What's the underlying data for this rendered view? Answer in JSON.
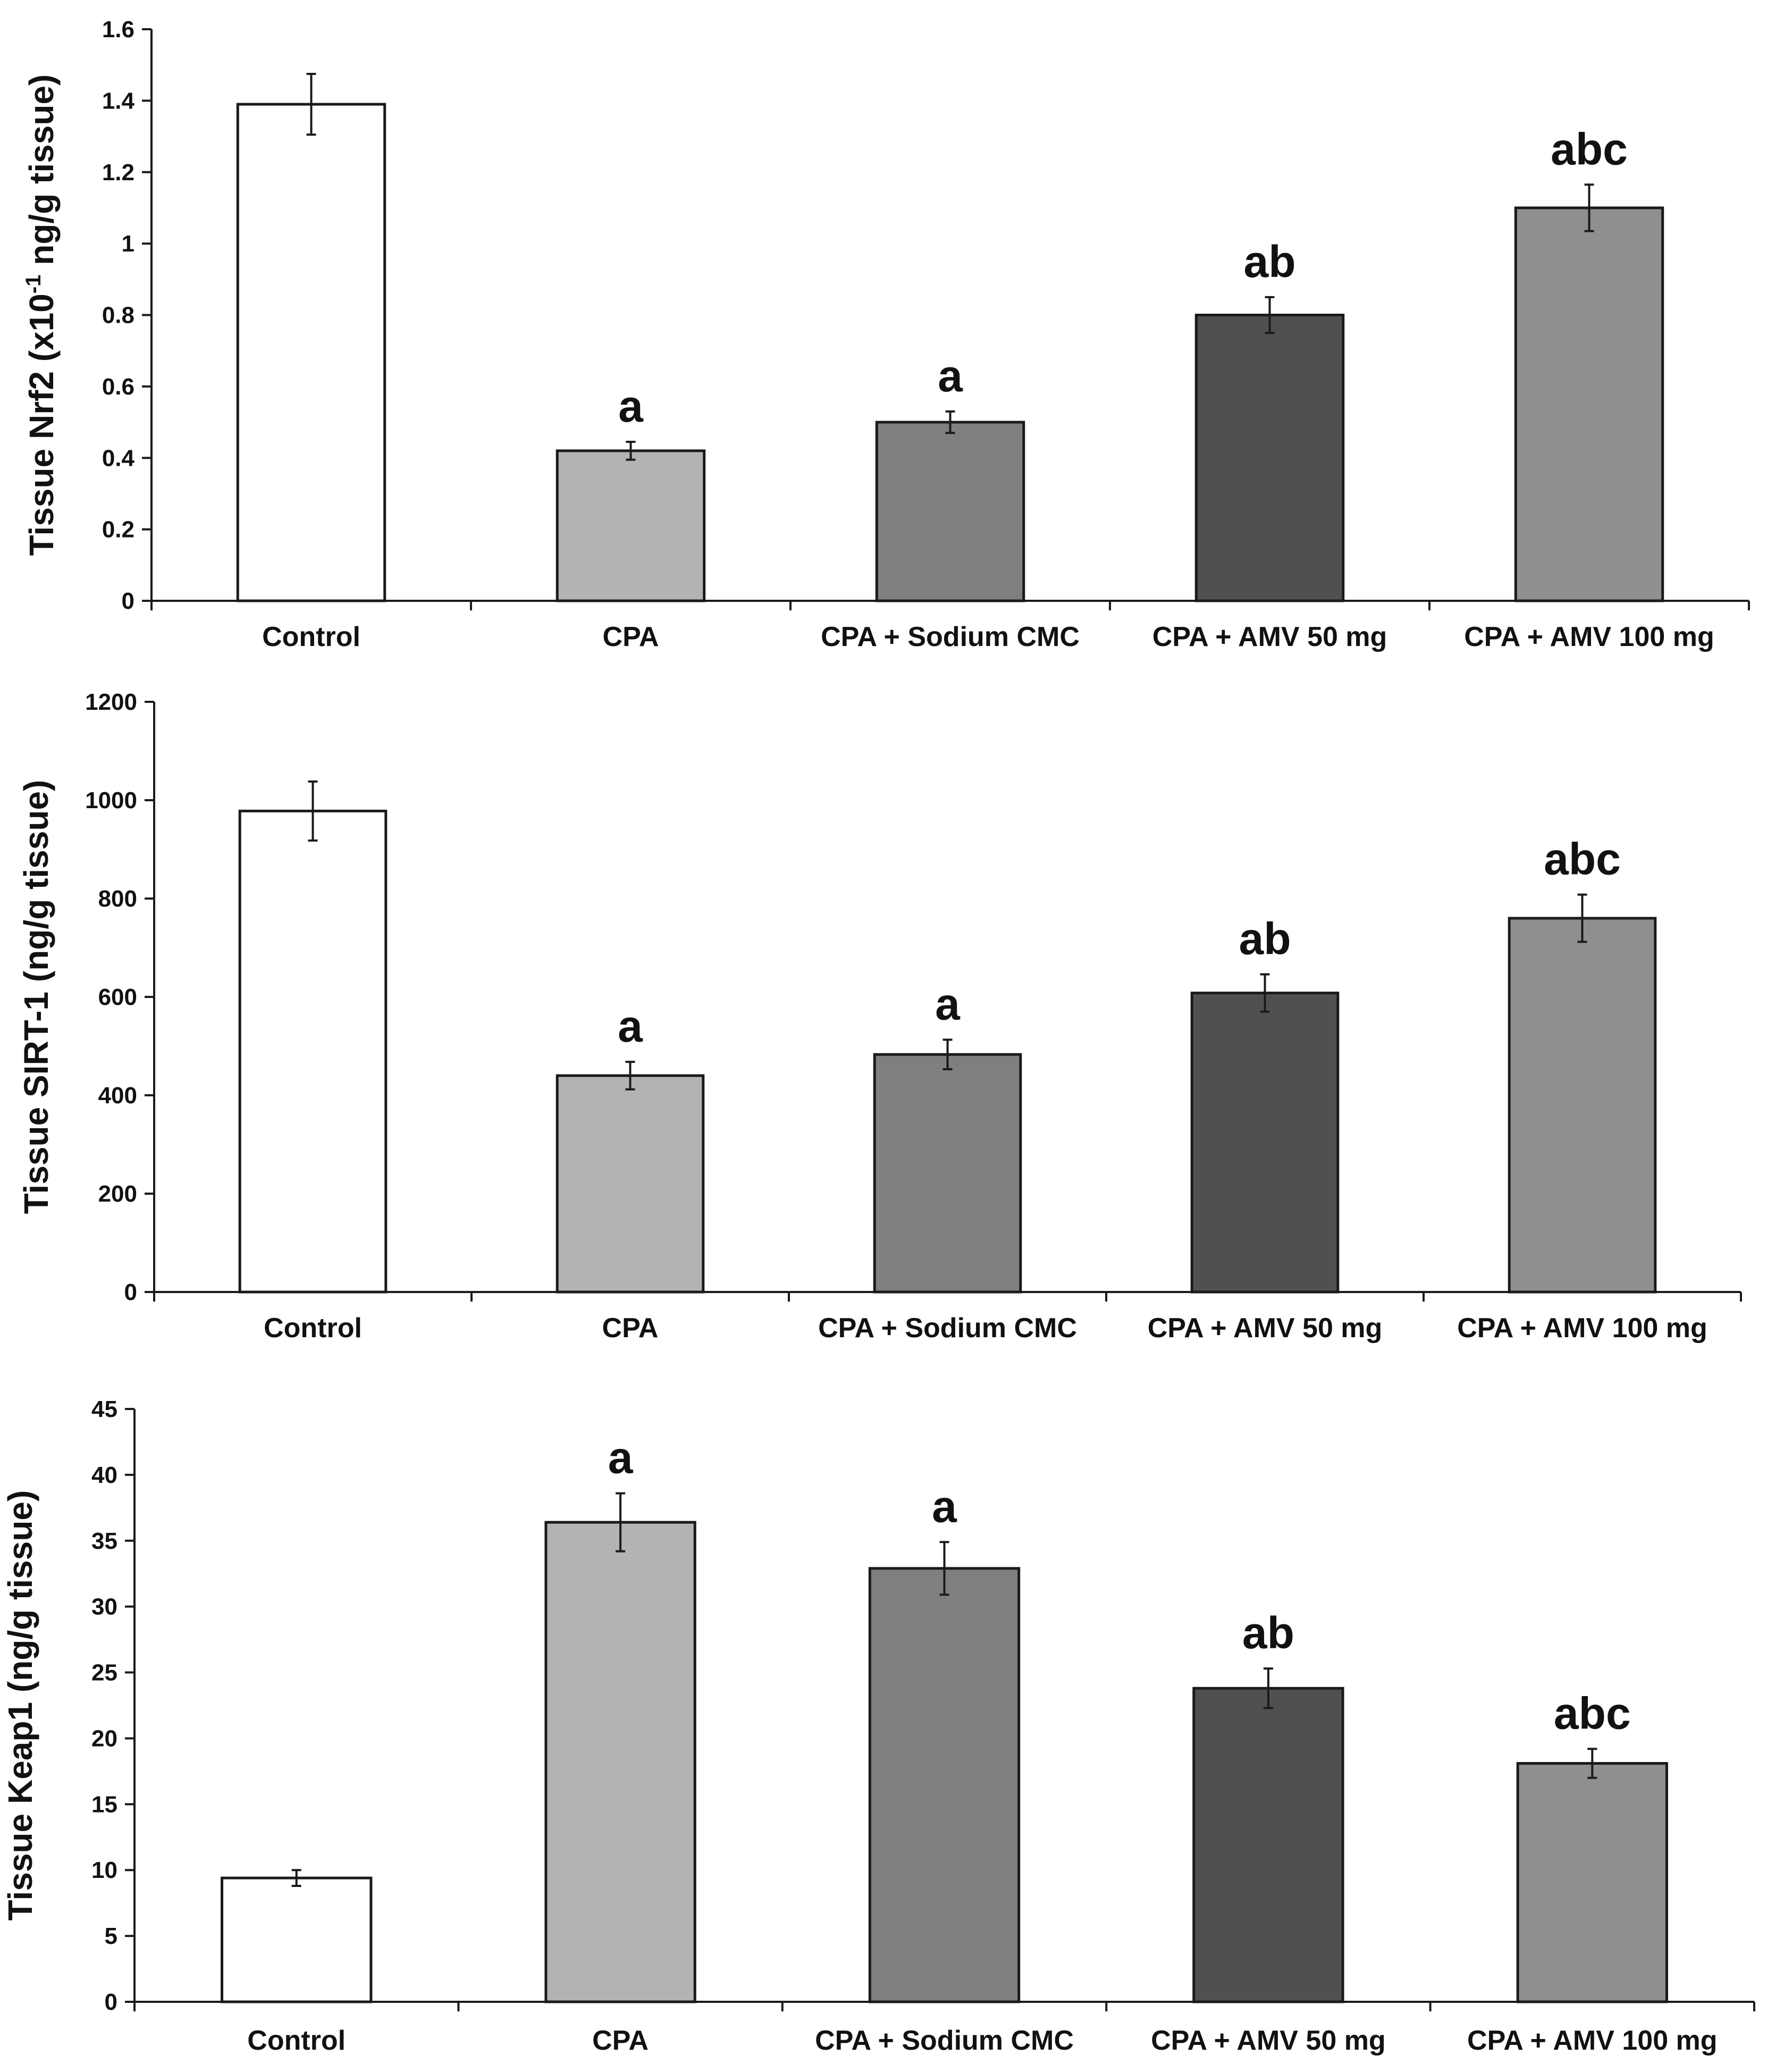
{
  "figure": {
    "colors": {
      "Control": "#ffffff",
      "CPA": "#b3b3b3",
      "CPA + Sodium CMC": "#7f7f7f",
      "CPA + AMV 50 mg": "#505050",
      "CPA + AMV 100 mg": "#8f8f8f",
      "axis": "#1a1a1a",
      "bar_outline": "#1a1a1a"
    }
  },
  "chart_data": [
    {
      "type": "bar",
      "title": "",
      "ylabel_main": "Tissue Nrf2 (x10",
      "ylabel_sup": "-1",
      "ylabel_rest": " ng/g tissue)",
      "xlabel": "",
      "categories": [
        "Control",
        "CPA",
        "CPA + Sodium CMC",
        "CPA + AMV 50 mg",
        "CPA + AMV 100 mg"
      ],
      "values": [
        1.39,
        0.42,
        0.5,
        0.8,
        1.1
      ],
      "errors": [
        0.085,
        0.025,
        0.03,
        0.05,
        0.065
      ],
      "significance": [
        "",
        "a",
        "a",
        "ab",
        "abc"
      ],
      "ylim": [
        0,
        1.6
      ],
      "yticks": [
        0,
        0.2,
        0.4,
        0.6,
        0.8,
        1,
        1.2,
        1.4,
        1.6
      ],
      "ytick_labels": [
        "0",
        "0.2",
        "0.4",
        "0.6",
        "0.8",
        "1",
        "1.2",
        "1.4",
        "1.6"
      ],
      "grid": false
    },
    {
      "type": "bar",
      "title": "",
      "ylabel_main": "Tissue SIRT-1 (ng/g tissue)",
      "ylabel_sup": "",
      "ylabel_rest": "",
      "xlabel": "",
      "categories": [
        "Control",
        "CPA",
        "CPA + Sodium CMC",
        "CPA + AMV 50 mg",
        "CPA + AMV 100 mg"
      ],
      "values": [
        978,
        440,
        483,
        608,
        760
      ],
      "errors": [
        60,
        28,
        30,
        38,
        48
      ],
      "significance": [
        "",
        "a",
        "a",
        "ab",
        "abc"
      ],
      "ylim": [
        0,
        1200
      ],
      "yticks": [
        0,
        200,
        400,
        600,
        800,
        1000,
        1200
      ],
      "ytick_labels": [
        "0",
        "200",
        "400",
        "600",
        "800",
        "1000",
        "1200"
      ],
      "grid": false
    },
    {
      "type": "bar",
      "title": "",
      "ylabel_main": "Tissue Keap1 (ng/g tissue)",
      "ylabel_sup": "",
      "ylabel_rest": "",
      "xlabel": "",
      "categories": [
        "Control",
        "CPA",
        "CPA + Sodium CMC",
        "CPA + AMV 50 mg",
        "CPA + AMV 100 mg"
      ],
      "values": [
        9.4,
        36.4,
        32.9,
        23.8,
        18.1
      ],
      "errors": [
        0.6,
        2.2,
        2.0,
        1.5,
        1.1
      ],
      "significance": [
        "",
        "a",
        "a",
        "ab",
        "abc"
      ],
      "ylim": [
        0,
        45
      ],
      "yticks": [
        0,
        5,
        10,
        15,
        20,
        25,
        30,
        35,
        40,
        45
      ],
      "ytick_labels": [
        "0",
        "5",
        "10",
        "15",
        "20",
        "25",
        "30",
        "35",
        "40",
        "45"
      ],
      "grid": false
    }
  ]
}
